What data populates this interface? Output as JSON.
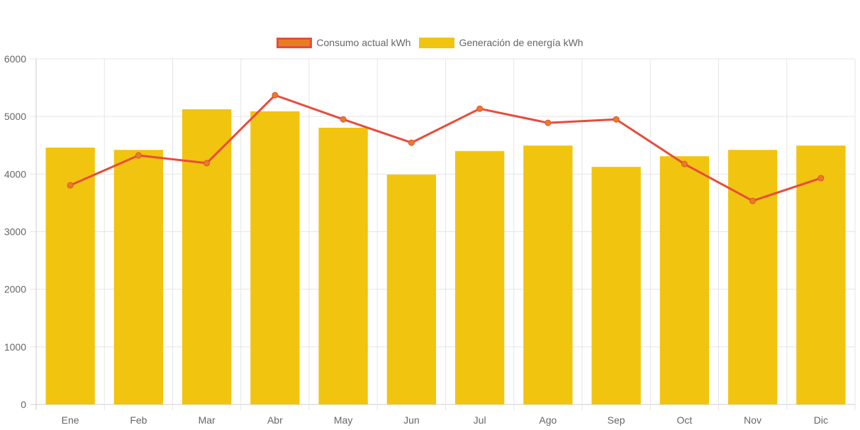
{
  "chart_data": {
    "type": "bar",
    "title": "",
    "xlabel": "",
    "ylabel": "",
    "categories": [
      "Ene",
      "Feb",
      "Mar",
      "Abr",
      "May",
      "Jun",
      "Jul",
      "Ago",
      "Sep",
      "Oct",
      "Nov",
      "Dic"
    ],
    "ylim": [
      0,
      6000
    ],
    "yticks": [
      0,
      1000,
      2000,
      3000,
      4000,
      5000,
      6000
    ],
    "grid": true,
    "legend_position": "top-center",
    "series": [
      {
        "name": "Consumo actual kWh",
        "type": "line",
        "color": "#e74c3c",
        "point_color": "#e67e22",
        "values": [
          3805,
          4325,
          4190,
          5370,
          4950,
          4545,
          5135,
          4890,
          4950,
          4175,
          3535,
          3930
        ]
      },
      {
        "name": "Generación de energía kWh",
        "type": "bar",
        "color": "#f1c40f",
        "values": [
          4460,
          4420,
          5125,
          5090,
          4805,
          3990,
          4400,
          4495,
          4125,
          4310,
          4420,
          4495
        ]
      }
    ]
  }
}
